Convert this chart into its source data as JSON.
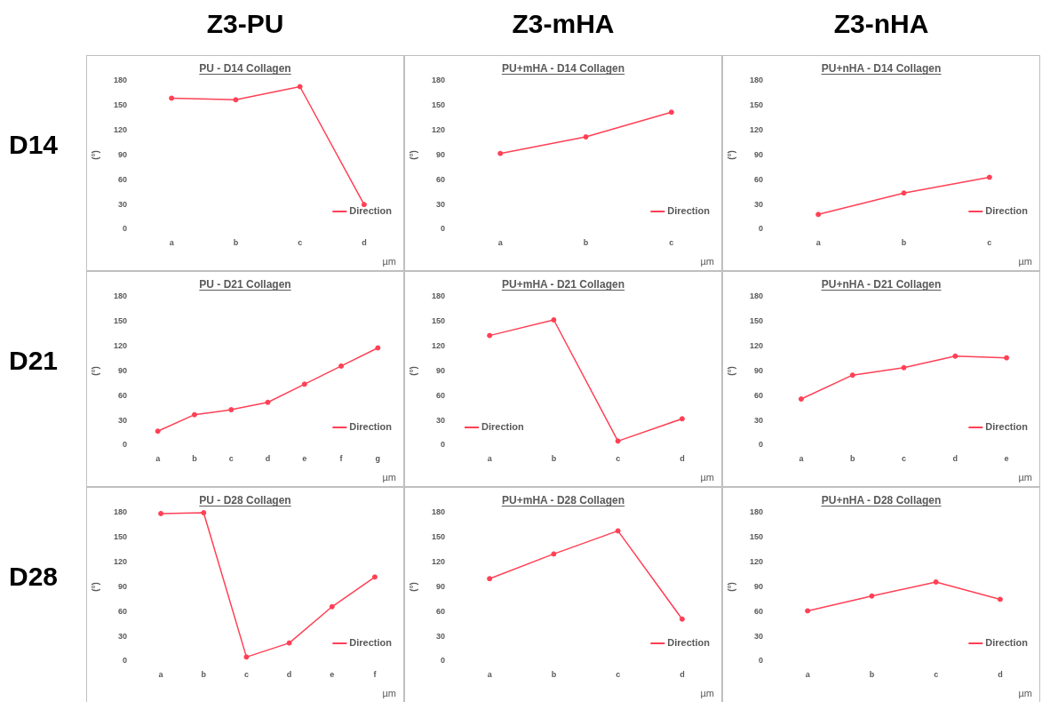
{
  "chart_data": [
    {
      "type": "line",
      "title": "PU - D14 Collagen",
      "xlabel": "µm",
      "ylabel": "(°)",
      "categories": [
        "a",
        "b",
        "c",
        "d"
      ],
      "series": [
        {
          "name": "Direction",
          "color": "#ff4055",
          "values": [
            159,
            157,
            173,
            30
          ]
        }
      ],
      "ylim": [
        0,
        180
      ],
      "yticks": [
        0,
        30,
        60,
        90,
        120,
        150,
        180
      ],
      "legend": "bottom right",
      "marker": "circle"
    },
    {
      "type": "line",
      "title": "PU+mHA - D14 Collagen",
      "xlabel": "µm",
      "ylabel": "(°)",
      "categories": [
        "a",
        "b",
        "c"
      ],
      "series": [
        {
          "name": "Direction",
          "color": "#ff4055",
          "values": [
            92,
            112,
            142
          ]
        }
      ],
      "ylim": [
        0,
        180
      ],
      "yticks": [
        0,
        30,
        60,
        90,
        120,
        150,
        180
      ],
      "legend": "bottom right",
      "marker": "circle"
    },
    {
      "type": "line",
      "title": "PU+nHA - D14 Collagen",
      "xlabel": "µm",
      "ylabel": "(°)",
      "categories": [
        "a",
        "b",
        "c"
      ],
      "series": [
        {
          "name": "Direction",
          "color": "#ff4055",
          "values": [
            18,
            44,
            63
          ]
        }
      ],
      "ylim": [
        0,
        180
      ],
      "yticks": [
        0,
        30,
        60,
        90,
        120,
        150,
        180
      ],
      "legend": "bottom right",
      "marker": "circle"
    },
    {
      "type": "line",
      "title": "PU - D21 Collagen",
      "xlabel": "µm",
      "ylabel": "(°)",
      "categories": [
        "a",
        "b",
        "c",
        "d",
        "e",
        "f",
        "g"
      ],
      "series": [
        {
          "name": "Direction",
          "color": "#ff4055",
          "values": [
            17,
            37,
            43,
            52,
            74,
            96,
            118
          ]
        }
      ],
      "ylim": [
        0,
        180
      ],
      "yticks": [
        0,
        30,
        60,
        90,
        120,
        150,
        180
      ],
      "legend": "bottom right",
      "marker": "circle"
    },
    {
      "type": "line",
      "title": "PU+mHA - D21 Collagen",
      "xlabel": "µm",
      "ylabel": "(°)",
      "categories": [
        "a",
        "b",
        "c",
        "d"
      ],
      "series": [
        {
          "name": "Direction",
          "color": "#ff4055",
          "values": [
            133,
            152,
            5,
            32
          ]
        }
      ],
      "ylim": [
        0,
        180
      ],
      "yticks": [
        0,
        30,
        60,
        90,
        120,
        150,
        180
      ],
      "legend": "bottom left",
      "marker": "circle"
    },
    {
      "type": "line",
      "title": "PU+nHA - D21 Collagen",
      "xlabel": "µm",
      "ylabel": "(°)",
      "categories": [
        "a",
        "b",
        "c",
        "d",
        "e"
      ],
      "series": [
        {
          "name": "Direction",
          "color": "#ff4055",
          "values": [
            56,
            85,
            94,
            108,
            106
          ]
        }
      ],
      "ylim": [
        0,
        180
      ],
      "yticks": [
        0,
        30,
        60,
        90,
        120,
        150,
        180
      ],
      "legend": "bottom right",
      "marker": "circle"
    },
    {
      "type": "line",
      "title": "PU - D28 Collagen",
      "xlabel": "µm",
      "ylabel": "(°)",
      "categories": [
        "a",
        "b",
        "c",
        "d",
        "e",
        "f"
      ],
      "series": [
        {
          "name": "Direction",
          "color": "#ff4055",
          "values": [
            179,
            180,
            5,
            22,
            66,
            102
          ]
        }
      ],
      "ylim": [
        0,
        180
      ],
      "yticks": [
        0,
        30,
        60,
        90,
        120,
        150,
        180
      ],
      "legend": "bottom right",
      "marker": "circle"
    },
    {
      "type": "line",
      "title": "PU+mHA - D28 Collagen",
      "xlabel": "µm",
      "ylabel": "(°)",
      "categories": [
        "a",
        "b",
        "c",
        "d"
      ],
      "series": [
        {
          "name": "Direction",
          "color": "#ff4055",
          "values": [
            100,
            130,
            158,
            51
          ]
        }
      ],
      "ylim": [
        0,
        180
      ],
      "yticks": [
        0,
        30,
        60,
        90,
        120,
        150,
        180
      ],
      "legend": "bottom right",
      "marker": "circle"
    },
    {
      "type": "line",
      "title": "PU+nHA - D28 Collagen",
      "xlabel": "µm",
      "ylabel": "(°)",
      "categories": [
        "a",
        "b",
        "c",
        "d"
      ],
      "series": [
        {
          "name": "Direction",
          "color": "#ff4055",
          "values": [
            61,
            79,
            96,
            75
          ]
        }
      ],
      "ylim": [
        0,
        180
      ],
      "yticks": [
        0,
        30,
        60,
        90,
        120,
        150,
        180
      ],
      "legend": "bottom right",
      "marker": "circle"
    },
    {
      "type": "other",
      "annotations": [
        "Z3-PU",
        "Z3-mHA",
        "Z3-nHA",
        "D14",
        "D21",
        "D28"
      ]
    }
  ]
}
